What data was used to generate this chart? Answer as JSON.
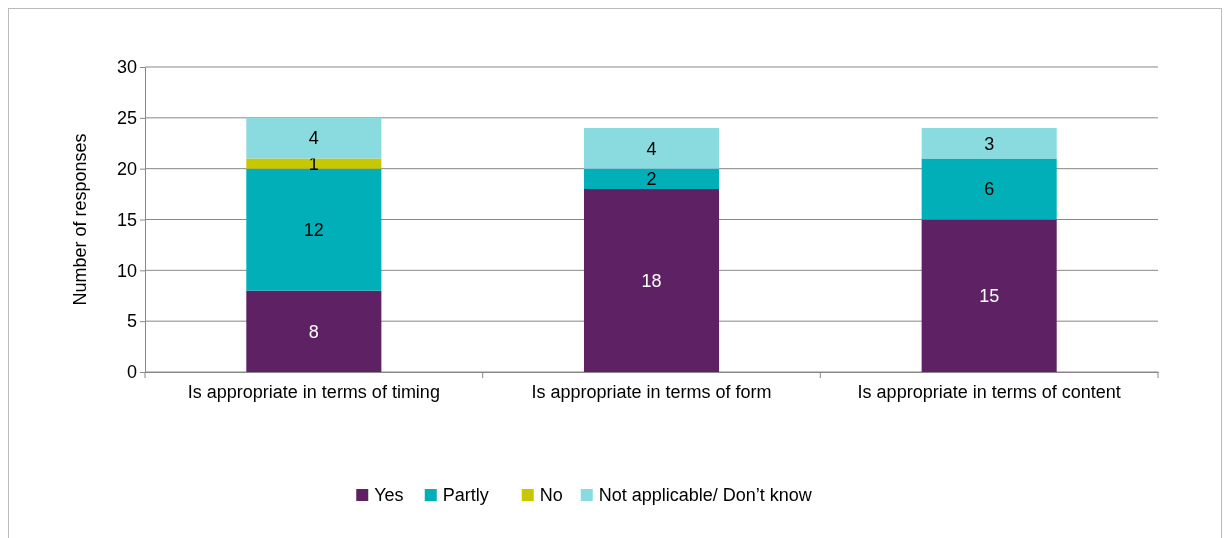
{
  "chart_data": {
    "type": "bar",
    "stacked": true,
    "ylabel": "Number of responses",
    "categories": [
      "Is appropriate in terms of timing",
      "Is appropriate in terms of form",
      "Is appropriate in terms of content"
    ],
    "series": [
      {
        "name": "Yes",
        "color": "#5e2264",
        "values": [
          8,
          18,
          15
        ]
      },
      {
        "name": "Partly",
        "color": "#00afb8",
        "values": [
          12,
          2,
          6
        ]
      },
      {
        "name": "No",
        "color": "#c8c800",
        "values": [
          1,
          null,
          null
        ]
      },
      {
        "name": "Not applicable/ Don’t know",
        "color": "#8adbe0",
        "values": [
          4,
          4,
          3
        ]
      }
    ],
    "ylim": [
      0,
      30
    ],
    "yticks": [
      0,
      5,
      10,
      15,
      20,
      25,
      30
    ],
    "grid": "y",
    "legend": "bottom",
    "data_labels": true
  }
}
